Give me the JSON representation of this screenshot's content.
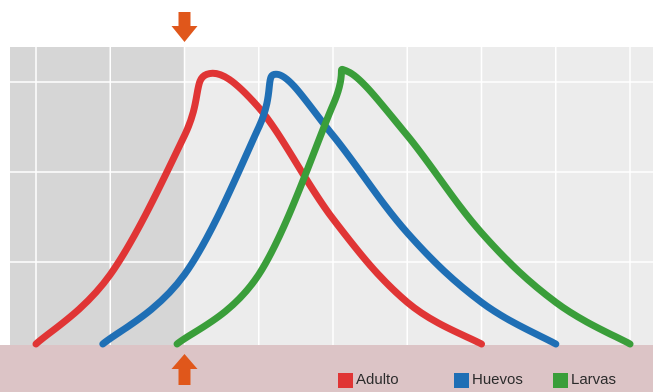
{
  "chart_data": {
    "type": "line",
    "title": "",
    "xlabel": "",
    "ylabel": "",
    "grid": true,
    "legend_placement": "bottom-right",
    "x_tick_count": 9,
    "shaded_region_end_x": 2,
    "marker": "vertical-arrow-pair",
    "marker_x": 2,
    "series": [
      {
        "name": "Adulto",
        "color": "#e03535",
        "x": [
          0,
          1,
          2,
          2.3,
          3,
          4,
          5,
          6
        ],
        "y": [
          0,
          0.25,
          0.75,
          0.97,
          0.85,
          0.45,
          0.15,
          0
        ]
      },
      {
        "name": "Huevos",
        "color": "#1f6fb5",
        "x": [
          0.9,
          2,
          3,
          3.25,
          4,
          5,
          6,
          7
        ],
        "y": [
          0,
          0.25,
          0.78,
          0.97,
          0.75,
          0.4,
          0.15,
          0
        ]
      },
      {
        "name": "Larvas",
        "color": "#3a9e3a",
        "x": [
          1.9,
          3,
          4,
          4.2,
          5,
          6,
          7,
          8
        ],
        "y": [
          0,
          0.25,
          0.86,
          0.98,
          0.75,
          0.4,
          0.15,
          0
        ]
      }
    ],
    "colors": {
      "plot_bg": "#ececec",
      "shaded_bg": "#d6d6d6",
      "bottom_band": "#dcc4c6",
      "grid": "#ffffff",
      "arrow": "#e0571b"
    }
  },
  "legend": {
    "items": [
      {
        "label": "Adulto",
        "color": "#e03535"
      },
      {
        "label": "Huevos",
        "color": "#1f6fb5"
      },
      {
        "label": "Larvas",
        "color": "#3a9e3a"
      }
    ]
  }
}
